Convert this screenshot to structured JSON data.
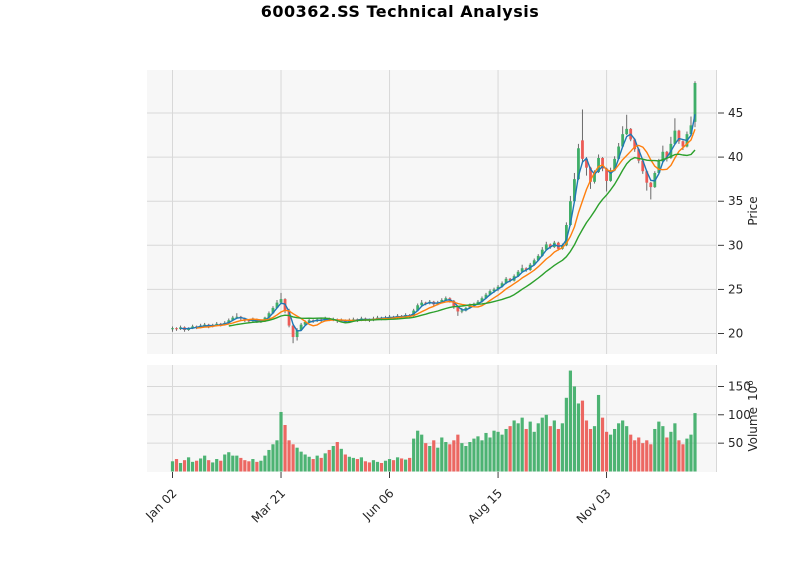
{
  "chart_data": {
    "type": "candlestick",
    "title": "600362.SS Technical Analysis",
    "price_axis": {
      "label": "Price",
      "ticks": [
        20,
        25,
        30,
        35,
        40,
        45
      ],
      "range": [
        17.8,
        49.9
      ],
      "side": "right"
    },
    "volume_axis": {
      "label": "Volume",
      "unit_base": "10",
      "unit_exp": "6",
      "ticks": [
        50,
        100,
        150
      ],
      "range": [
        0,
        188
      ],
      "side": "right"
    },
    "date_axis": {
      "ticks": [
        {
          "label": "Jan 02",
          "index": 0
        },
        {
          "label": "Mar 21",
          "index": 27
        },
        {
          "label": "Jun 06",
          "index": 54
        },
        {
          "label": "Aug 15",
          "index": 81
        },
        {
          "label": "Nov 03",
          "index": 108
        }
      ]
    },
    "moving_averages": [
      {
        "name": "ma-short",
        "window": 3,
        "color": "#1f77b4"
      },
      {
        "name": "ma-mid",
        "window": 7,
        "color": "#ff7f0e"
      },
      {
        "name": "ma-long",
        "window": 15,
        "color": "#2ca02c"
      }
    ],
    "colors": {
      "up": "#3fae68",
      "down": "#ec5b56",
      "wick": "#6b6b6b",
      "panel_bg": "#f7f7f7",
      "grid": "#d8d8d8",
      "text": "#262626"
    },
    "grid": true,
    "legend": "none",
    "candles": [
      [
        20.5,
        20.8,
        20.2,
        20.6
      ],
      [
        20.6,
        20.7,
        20.3,
        20.5
      ],
      [
        20.5,
        20.9,
        20.4,
        20.7
      ],
      [
        20.7,
        20.8,
        20.2,
        20.4
      ],
      [
        20.4,
        20.7,
        20.3,
        20.6
      ],
      [
        20.6,
        21.0,
        20.5,
        20.8
      ],
      [
        20.8,
        20.9,
        20.5,
        20.7
      ],
      [
        20.7,
        21.1,
        20.6,
        20.9
      ],
      [
        20.9,
        21.2,
        20.8,
        21.0
      ],
      [
        21.0,
        21.1,
        20.6,
        20.8
      ],
      [
        20.8,
        21.1,
        20.7,
        20.9
      ],
      [
        20.9,
        21.3,
        20.8,
        21.1
      ],
      [
        21.1,
        21.2,
        20.8,
        21.0
      ],
      [
        21.0,
        21.4,
        20.9,
        21.2
      ],
      [
        21.2,
        21.7,
        21.1,
        21.5
      ],
      [
        21.5,
        22.0,
        21.4,
        21.8
      ],
      [
        21.8,
        22.3,
        21.7,
        21.9
      ],
      [
        21.9,
        22.0,
        21.5,
        21.7
      ],
      [
        21.7,
        21.8,
        21.3,
        21.5
      ],
      [
        21.5,
        21.6,
        21.2,
        21.4
      ],
      [
        21.4,
        21.8,
        21.3,
        21.6
      ],
      [
        21.6,
        21.7,
        21.2,
        21.3
      ],
      [
        21.3,
        21.6,
        21.2,
        21.4
      ],
      [
        21.4,
        21.9,
        21.3,
        21.8
      ],
      [
        21.8,
        22.5,
        21.7,
        22.3
      ],
      [
        22.3,
        23.1,
        22.2,
        22.9
      ],
      [
        22.9,
        23.8,
        22.8,
        23.5
      ],
      [
        23.5,
        24.6,
        23.3,
        23.9
      ],
      [
        23.9,
        24.0,
        22.3,
        22.6
      ],
      [
        22.6,
        22.8,
        20.7,
        20.9
      ],
      [
        20.9,
        21.0,
        18.9,
        19.6
      ],
      [
        19.6,
        20.6,
        19.2,
        20.4
      ],
      [
        20.4,
        21.2,
        20.3,
        21.0
      ],
      [
        21.0,
        21.5,
        20.9,
        21.3
      ],
      [
        21.3,
        21.7,
        21.2,
        21.5
      ],
      [
        21.5,
        21.6,
        21.2,
        21.4
      ],
      [
        21.4,
        21.8,
        21.3,
        21.6
      ],
      [
        21.6,
        21.7,
        21.3,
        21.5
      ],
      [
        21.5,
        21.9,
        21.4,
        21.7
      ],
      [
        21.7,
        21.8,
        21.4,
        21.5
      ],
      [
        21.5,
        21.8,
        21.4,
        21.6
      ],
      [
        21.6,
        21.7,
        21.2,
        21.4
      ],
      [
        21.4,
        21.7,
        21.3,
        21.5
      ],
      [
        21.5,
        21.6,
        21.2,
        21.3
      ],
      [
        21.3,
        21.7,
        21.2,
        21.5
      ],
      [
        21.5,
        21.8,
        21.4,
        21.6
      ],
      [
        21.6,
        21.7,
        21.3,
        21.5
      ],
      [
        21.5,
        21.9,
        21.4,
        21.7
      ],
      [
        21.7,
        21.8,
        21.4,
        21.6
      ],
      [
        21.6,
        21.7,
        21.3,
        21.5
      ],
      [
        21.5,
        21.9,
        21.4,
        21.7
      ],
      [
        21.7,
        22.0,
        21.6,
        21.8
      ],
      [
        21.8,
        21.9,
        21.5,
        21.7
      ],
      [
        21.7,
        22.0,
        21.6,
        21.8
      ],
      [
        21.8,
        22.1,
        21.7,
        21.9
      ],
      [
        21.9,
        22.0,
        21.6,
        21.8
      ],
      [
        21.8,
        22.2,
        21.7,
        22.0
      ],
      [
        22.0,
        22.1,
        21.7,
        21.9
      ],
      [
        21.9,
        22.3,
        21.8,
        22.1
      ],
      [
        22.1,
        22.2,
        21.8,
        22.0
      ],
      [
        22.0,
        22.8,
        21.9,
        22.6
      ],
      [
        22.6,
        23.4,
        22.5,
        23.2
      ],
      [
        23.2,
        23.8,
        23.1,
        23.5
      ],
      [
        23.5,
        23.6,
        23.2,
        23.4
      ],
      [
        23.4,
        23.8,
        23.3,
        23.6
      ],
      [
        23.6,
        23.7,
        23.1,
        23.3
      ],
      [
        23.3,
        23.7,
        23.2,
        23.5
      ],
      [
        23.5,
        24.0,
        23.4,
        23.8
      ],
      [
        23.8,
        24.2,
        23.7,
        24.0
      ],
      [
        24.0,
        24.1,
        23.5,
        23.7
      ],
      [
        23.7,
        23.8,
        22.8,
        23.0
      ],
      [
        23.0,
        23.1,
        22.0,
        22.5
      ],
      [
        22.5,
        22.9,
        22.3,
        22.6
      ],
      [
        22.6,
        23.0,
        22.5,
        22.9
      ],
      [
        22.9,
        23.4,
        22.8,
        23.2
      ],
      [
        23.2,
        23.5,
        23.0,
        23.3
      ],
      [
        23.3,
        23.8,
        23.2,
        23.6
      ],
      [
        23.6,
        24.2,
        23.5,
        24.0
      ],
      [
        24.0,
        24.6,
        23.9,
        24.4
      ],
      [
        24.4,
        25.0,
        24.3,
        24.8
      ],
      [
        24.8,
        25.2,
        24.6,
        25.0
      ],
      [
        25.0,
        25.5,
        24.8,
        25.3
      ],
      [
        25.3,
        25.9,
        25.2,
        25.7
      ],
      [
        25.7,
        26.4,
        25.6,
        26.2
      ],
      [
        26.2,
        26.3,
        25.8,
        26.0
      ],
      [
        26.0,
        26.7,
        25.9,
        26.5
      ],
      [
        26.5,
        27.2,
        26.4,
        27.0
      ],
      [
        27.0,
        27.8,
        26.9,
        27.4
      ],
      [
        27.4,
        27.5,
        27.0,
        27.2
      ],
      [
        27.2,
        28.0,
        27.1,
        27.8
      ],
      [
        27.8,
        28.5,
        27.7,
        28.3
      ],
      [
        28.3,
        29.0,
        28.2,
        28.8
      ],
      [
        28.8,
        29.8,
        28.7,
        29.5
      ],
      [
        29.5,
        30.4,
        29.4,
        30.1
      ],
      [
        30.1,
        30.2,
        29.6,
        29.8
      ],
      [
        29.8,
        30.5,
        29.7,
        30.3
      ],
      [
        30.3,
        30.4,
        29.4,
        29.6
      ],
      [
        29.6,
        30.2,
        29.5,
        30.0
      ],
      [
        30.0,
        32.6,
        29.9,
        32.3
      ],
      [
        32.3,
        35.6,
        32.2,
        35.0
      ],
      [
        35.0,
        38.2,
        34.9,
        37.5
      ],
      [
        37.5,
        41.5,
        37.4,
        41.0
      ],
      [
        41.9,
        45.4,
        39.3,
        39.8
      ],
      [
        39.8,
        40.0,
        37.9,
        38.8
      ],
      [
        38.8,
        38.9,
        36.4,
        37.2
      ],
      [
        37.2,
        38.5,
        37.0,
        38.3
      ],
      [
        38.3,
        40.3,
        38.2,
        39.9
      ],
      [
        39.9,
        40.0,
        38.4,
        38.7
      ],
      [
        38.7,
        38.8,
        36.1,
        37.3
      ],
      [
        37.3,
        38.8,
        37.2,
        38.5
      ],
      [
        38.5,
        40.1,
        38.4,
        39.8
      ],
      [
        39.8,
        41.6,
        39.7,
        41.2
      ],
      [
        41.2,
        43.5,
        41.1,
        42.6
      ],
      [
        42.6,
        44.8,
        42.5,
        43.2
      ],
      [
        43.2,
        43.3,
        41.8,
        42.0
      ],
      [
        42.0,
        42.1,
        40.6,
        40.9
      ],
      [
        40.9,
        41.0,
        39.3,
        39.6
      ],
      [
        39.6,
        39.7,
        38.1,
        38.4
      ],
      [
        38.4,
        38.5,
        36.2,
        37.1
      ],
      [
        37.1,
        37.2,
        35.2,
        36.6
      ],
      [
        36.6,
        38.4,
        36.5,
        38.2
      ],
      [
        38.2,
        39.8,
        38.1,
        39.5
      ],
      [
        39.5,
        41.3,
        39.4,
        40.6
      ],
      [
        40.6,
        40.7,
        39.5,
        39.9
      ],
      [
        39.9,
        42.3,
        39.8,
        41.5
      ],
      [
        41.5,
        44.4,
        41.4,
        43.0
      ],
      [
        43.0,
        43.1,
        41.5,
        41.8
      ],
      [
        41.8,
        41.9,
        40.8,
        41.2
      ],
      [
        41.2,
        42.9,
        41.1,
        42.6
      ],
      [
        42.6,
        44.6,
        42.5,
        43.6
      ],
      [
        44.0,
        48.6,
        43.4,
        48.4
      ]
    ],
    "volumes": [
      18,
      22,
      15,
      20,
      25,
      17,
      19,
      23,
      28,
      20,
      16,
      22,
      19,
      30,
      34,
      28,
      28,
      24,
      20,
      18,
      22,
      17,
      19,
      28,
      38,
      48,
      55,
      105,
      82,
      55,
      48,
      42,
      35,
      30,
      26,
      22,
      28,
      24,
      32,
      38,
      45,
      52,
      40,
      30,
      26,
      24,
      22,
      25,
      18,
      16,
      20,
      17,
      15,
      19,
      22,
      20,
      25,
      23,
      21,
      24,
      58,
      72,
      65,
      50,
      45,
      55,
      42,
      60,
      52,
      48,
      55,
      65,
      50,
      45,
      52,
      58,
      62,
      55,
      68,
      60,
      72,
      70,
      65,
      75,
      80,
      90,
      85,
      95,
      75,
      88,
      70,
      85,
      95,
      100,
      80,
      90,
      75,
      85,
      130,
      178,
      150,
      120,
      125,
      90,
      75,
      80,
      135,
      95,
      70,
      65,
      75,
      85,
      90,
      80,
      65,
      55,
      60,
      50,
      55,
      48,
      75,
      88,
      80,
      60,
      70,
      85,
      55,
      48,
      58,
      65,
      103
    ]
  }
}
